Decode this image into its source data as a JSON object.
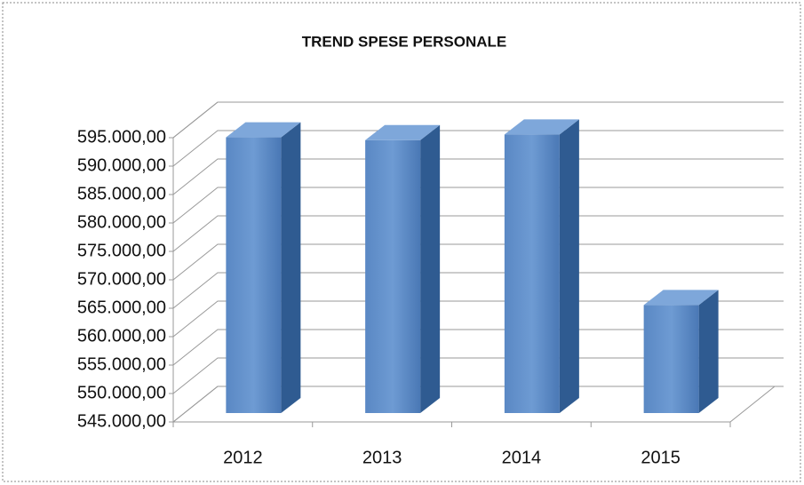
{
  "chart_data": {
    "type": "bar3d",
    "title": "TREND SPESE PERSONALE",
    "categories": [
      "2012",
      "2013",
      "2014",
      "2015"
    ],
    "values": [
      593500,
      593000,
      594000,
      564000
    ],
    "color": "#4f81bd",
    "ylim": [
      545000,
      595000
    ],
    "yticks": [
      {
        "value": 545000,
        "label": "545.000,00"
      },
      {
        "value": 550000,
        "label": "550.000,00"
      },
      {
        "value": 555000,
        "label": "555.000,00"
      },
      {
        "value": 560000,
        "label": "560.000,00"
      },
      {
        "value": 565000,
        "label": "565.000,00"
      },
      {
        "value": 570000,
        "label": "570.000,00"
      },
      {
        "value": 575000,
        "label": "575.000,00"
      },
      {
        "value": 580000,
        "label": "580.000,00"
      },
      {
        "value": 585000,
        "label": "585.000,00"
      },
      {
        "value": 590000,
        "label": "590.000,00"
      },
      {
        "value": 595000,
        "label": "595.000,00"
      }
    ],
    "grid": true
  }
}
